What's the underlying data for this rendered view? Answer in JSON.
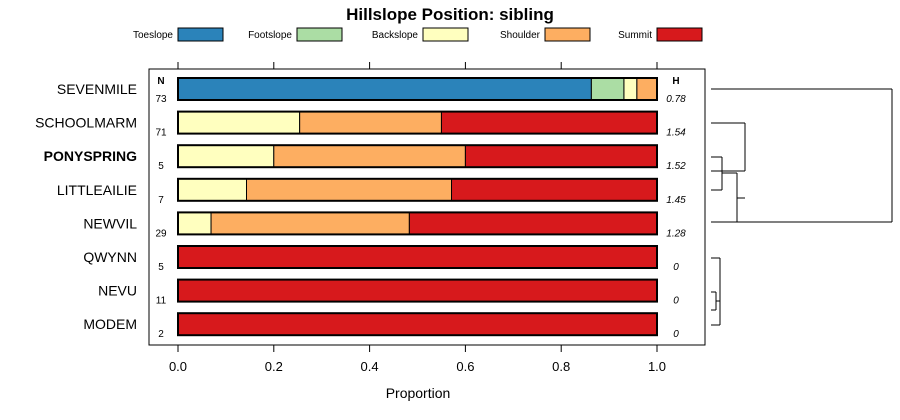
{
  "chart_data": {
    "type": "bar",
    "orientation": "horizontal",
    "stacked": true,
    "title": "Hillslope Position: sibling",
    "xlabel": "Proportion",
    "xlim": [
      0,
      1
    ],
    "x_ticks": [
      "0.0",
      "0.2",
      "0.4",
      "0.6",
      "0.8",
      "1.0"
    ],
    "legend_placement": "top",
    "n_header": "N",
    "h_header": "H",
    "categories": [
      {
        "label": "SEVENMILE",
        "n": "73",
        "h": "0.78",
        "bold": false
      },
      {
        "label": "SCHOOLMARM",
        "n": "71",
        "h": "1.54",
        "bold": false
      },
      {
        "label": "PONYSPRING",
        "n": "5",
        "h": "1.52",
        "bold": true
      },
      {
        "label": "LITTLEAILIE",
        "n": "7",
        "h": "1.45",
        "bold": false
      },
      {
        "label": "NEWVIL",
        "n": "29",
        "h": "1.28",
        "bold": false
      },
      {
        "label": "QWYNN",
        "n": "5",
        "h": "0",
        "bold": false
      },
      {
        "label": "NEVU",
        "n": "11",
        "h": "0",
        "bold": false
      },
      {
        "label": "MODEM",
        "n": "2",
        "h": "0",
        "bold": false
      }
    ],
    "series": [
      {
        "name": "Toeslope",
        "color": "#2b83ba",
        "values": [
          0.863,
          0,
          0,
          0,
          0,
          0,
          0,
          0
        ]
      },
      {
        "name": "Footslope",
        "color": "#abdda4",
        "values": [
          0.068,
          0,
          0,
          0,
          0,
          0,
          0,
          0
        ]
      },
      {
        "name": "Backslope",
        "color": "#ffffbf",
        "values": [
          0.027,
          0.254,
          0.2,
          0.143,
          0.069,
          0,
          0,
          0
        ]
      },
      {
        "name": "Shoulder",
        "color": "#fdae61",
        "values": [
          0.042,
          0.296,
          0.4,
          0.428,
          0.414,
          0,
          0,
          0
        ]
      },
      {
        "name": "Summit",
        "color": "#d7191c",
        "values": [
          0,
          0.45,
          0.4,
          0.429,
          0.517,
          1,
          1,
          1
        ]
      }
    ],
    "dendrogram": true
  }
}
